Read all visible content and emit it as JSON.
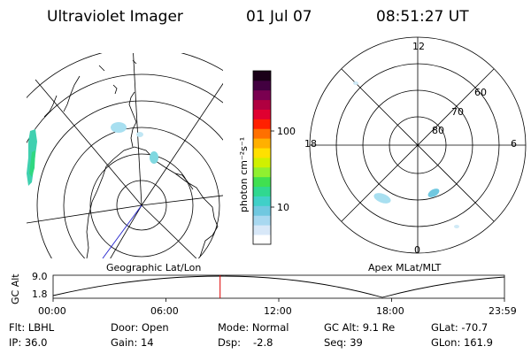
{
  "header": {
    "title": "Ultraviolet Imager",
    "date": "01 Jul 07",
    "time": "08:51:27 UT"
  },
  "geo_panel": {
    "label": "Geographic Lat/Lon"
  },
  "apex_panel": {
    "label": "Apex MLat/MLT",
    "mlt_labels": {
      "top": "12",
      "left": "18",
      "right": "6",
      "bottom": "0"
    },
    "lat_labels": [
      "60",
      "70",
      "80"
    ]
  },
  "colorbar": {
    "unit_label": "photon cm⁻²s⁻¹",
    "tick_labels": [
      "100",
      "10"
    ],
    "colors": [
      "#ffffff",
      "#d8e8f8",
      "#a8d8f0",
      "#70c8e0",
      "#40d0c8",
      "#30d890",
      "#40e050",
      "#90f030",
      "#d0f000",
      "#ffe000",
      "#ffb000",
      "#ff7000",
      "#ff2000",
      "#e00030",
      "#b00040",
      "#7a0050",
      "#420040",
      "#1a0018"
    ]
  },
  "altitude_plot": {
    "ylabel": "GC Alt",
    "y_ticks": [
      "9.0",
      "1.8"
    ],
    "x_ticks": [
      "00:00",
      "06:00",
      "12:00",
      "18:00",
      "23:59"
    ],
    "current_time_fraction": 0.37
  },
  "info": {
    "flt": "Flt: LBHL",
    "door": "Door: Open",
    "mode": "Mode: Normal",
    "gc_alt": "GC Alt: 9.1 Re",
    "glat": "GLat: -70.7",
    "ip": "IP: 36.0",
    "gain": "Gain: 14",
    "dsp_label": "Dsp:",
    "dsp_value": "-2.8",
    "seq": "Seq: 39",
    "glon": "GLon: 161.9"
  }
}
